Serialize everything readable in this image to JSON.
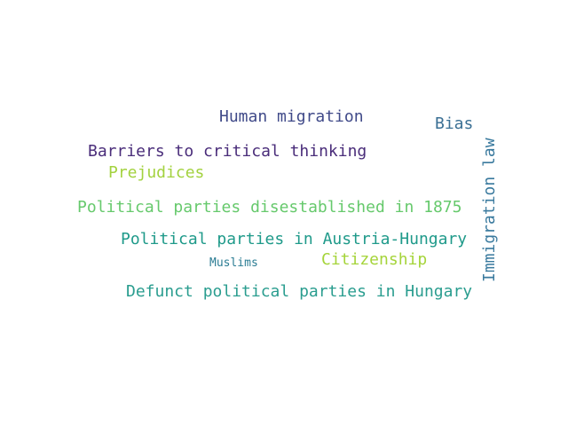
{
  "words": [
    {
      "text": "Human migration",
      "color": "#404a89"
    },
    {
      "text": "Bias",
      "color": "#3a6f94"
    },
    {
      "text": "Barriers to critical thinking",
      "color": "#4a2d7a"
    },
    {
      "text": "Prejudices",
      "color": "#a3d23f"
    },
    {
      "text": "Political parties disestablished in 1875",
      "color": "#66c96c"
    },
    {
      "text": "Political parties in Austria-Hungary",
      "color": "#1f9a8a"
    },
    {
      "text": "Muslims",
      "color": "#2a7c93"
    },
    {
      "text": "Citizenship",
      "color": "#a5d43a"
    },
    {
      "text": "Defunct political parties in Hungary",
      "color": "#2a9d8f"
    },
    {
      "text": "Immigration law",
      "color": "#3a7a9e",
      "orientation": "vertical"
    }
  ]
}
